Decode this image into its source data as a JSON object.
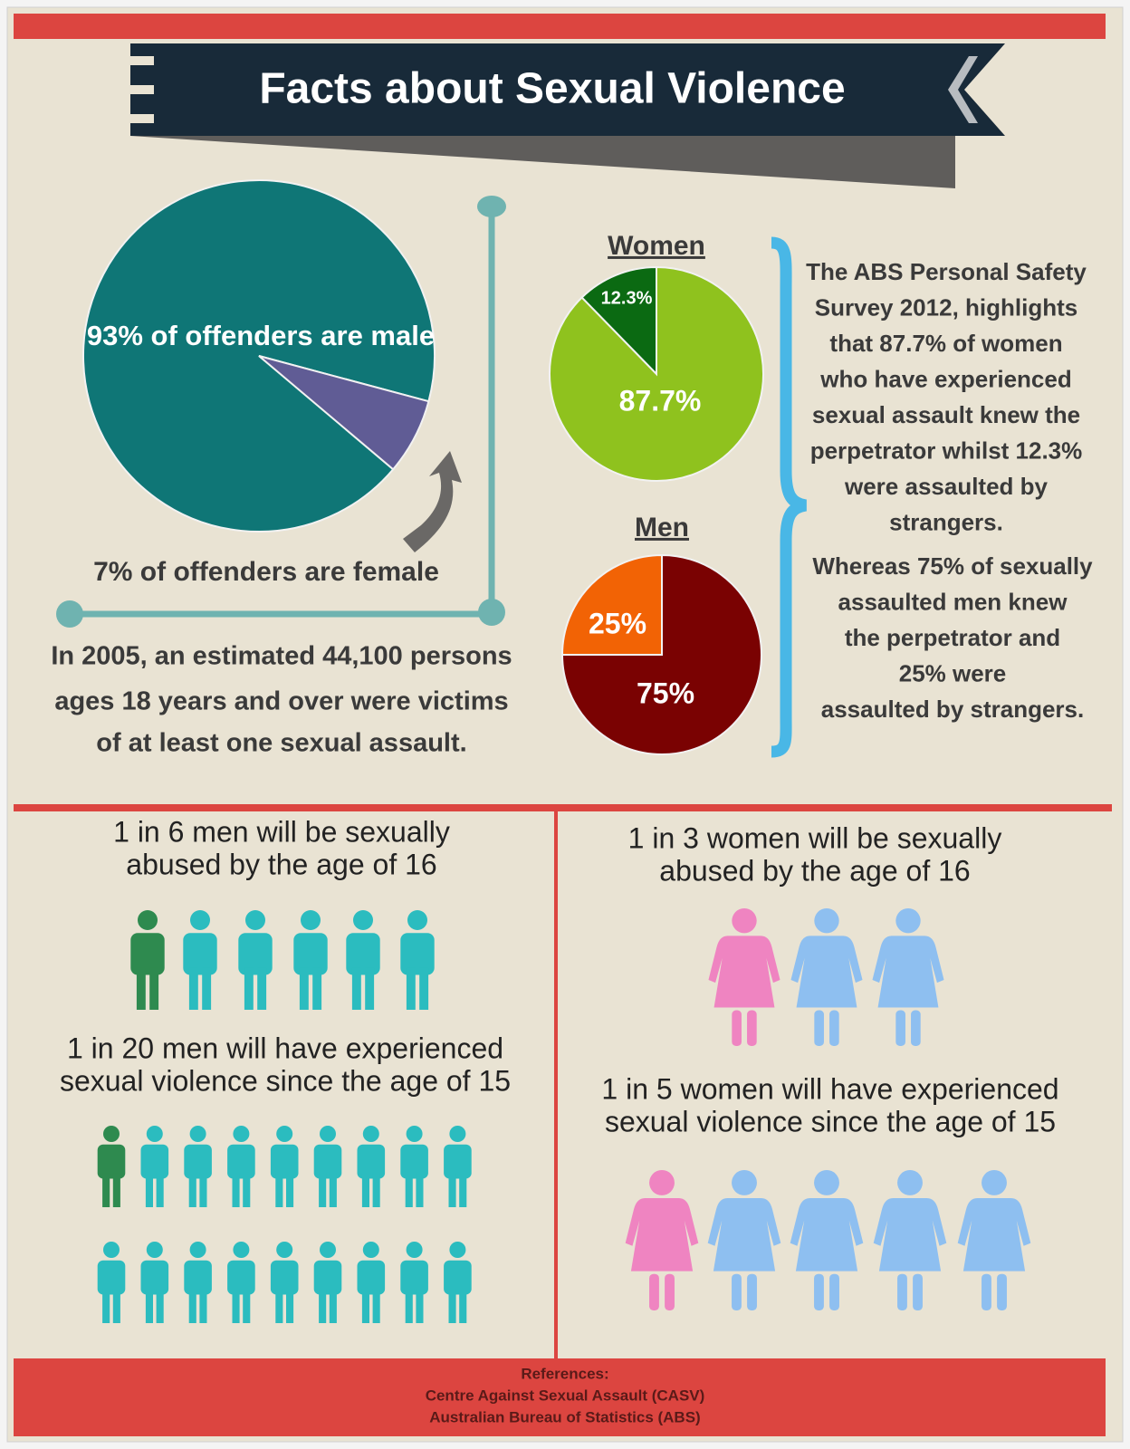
{
  "title": "Facts about Sexual Violence",
  "offenders_chart": {
    "type": "pie",
    "values": [
      93,
      7
    ],
    "labels": [
      "93% of offenders are male",
      "7% of offenders are female"
    ],
    "colors": [
      "#0f7676",
      "#605c95"
    ]
  },
  "victims_note": [
    "In 2005, an estimated 44,100 persons",
    "ages 18 years and over were victims",
    "of at least one sexual assault."
  ],
  "women_chart": {
    "type": "pie",
    "title": "Women",
    "values": [
      12.3,
      87.7
    ],
    "value_labels": [
      "12.3%",
      "87.7%"
    ],
    "colors": [
      "#0b6a12",
      "#8fc21e"
    ]
  },
  "men_chart": {
    "type": "pie",
    "title": "Men",
    "values": [
      25,
      75
    ],
    "value_labels": [
      "25%",
      "75%"
    ],
    "colors": [
      "#f26305",
      "#7a0202"
    ]
  },
  "abs_paragraphs": [
    [
      "The ABS Personal Safety",
      "Survey 2012, highlights",
      "that 87.7% of women",
      "who have experienced",
      "sexual assault knew the",
      "perpetrator whilst 12.3%",
      "were assaulted by",
      "strangers."
    ],
    [
      "Whereas 75% of sexually",
      "assaulted men knew",
      "the perpetrator and",
      "25% were",
      "assaulted by strangers."
    ]
  ],
  "stats": [
    {
      "lines": [
        "1 in 6 men will be sexually",
        "abused by the age of 16"
      ]
    },
    {
      "lines": [
        "1 in 20 men will have experienced",
        "sexual violence since the age of 15"
      ]
    },
    {
      "lines": [
        "1 in 3 women will be sexually",
        "abused by the age of 16"
      ]
    },
    {
      "lines": [
        "1 in 5 women will have experienced",
        "sexual violence since the age of 15"
      ]
    }
  ],
  "references": [
    "References:",
    "Centre Against Sexual Assault (CASV)",
    "Australian Bureau of Statistics (ABS)"
  ]
}
